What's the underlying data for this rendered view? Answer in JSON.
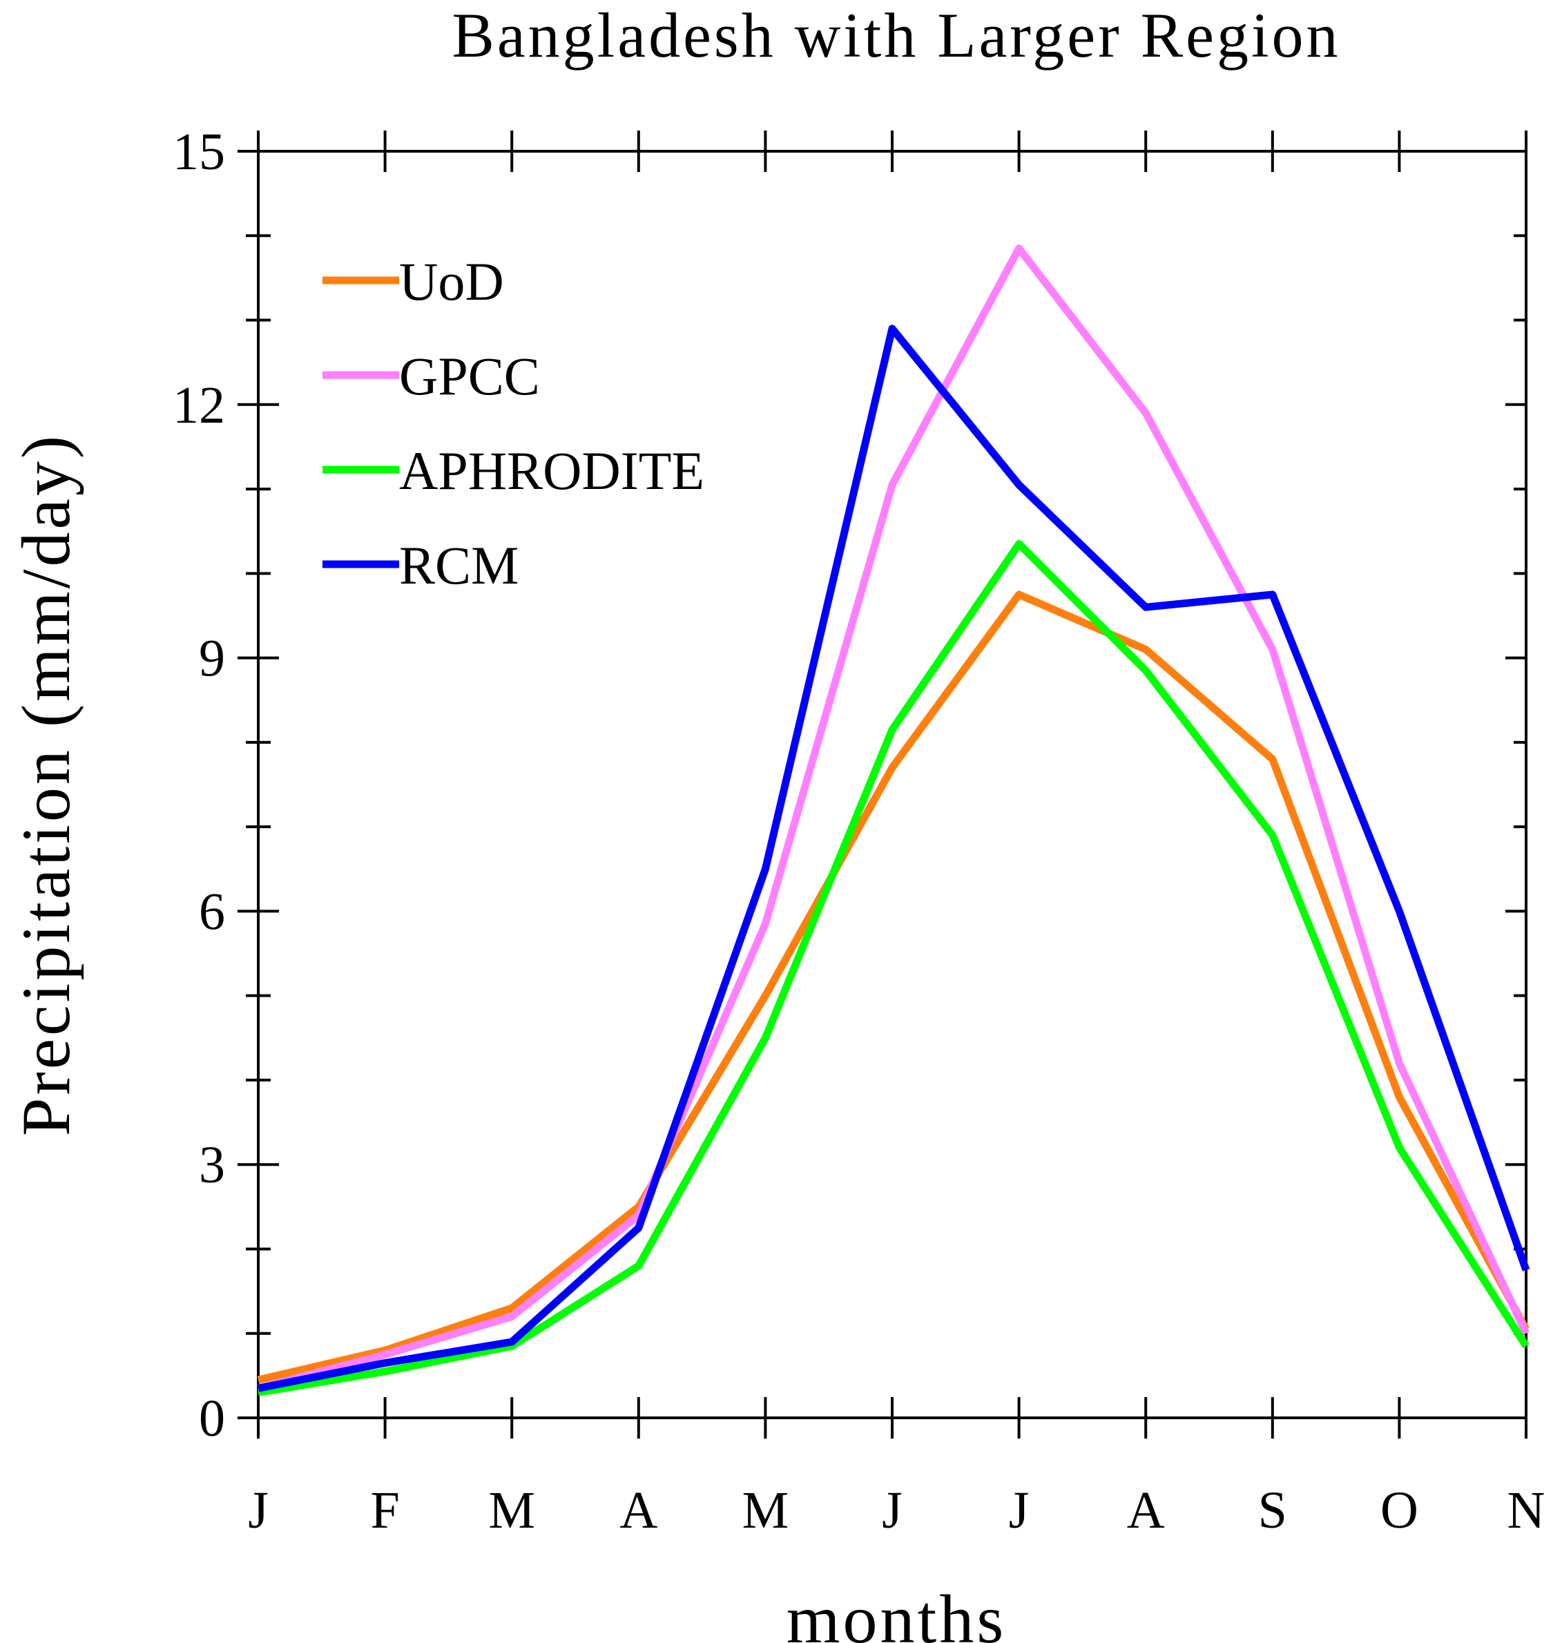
{
  "chart_data": {
    "type": "line",
    "title": "Bangladesh with Larger Region",
    "xlabel": "months",
    "ylabel": "Precipitation (mm/day)",
    "categories": [
      "J",
      "F",
      "M",
      "A",
      "M",
      "J",
      "J",
      "A",
      "S",
      "O",
      "N"
    ],
    "ylim": [
      0,
      15
    ],
    "yticks": [
      0,
      3,
      6,
      9,
      12,
      15
    ],
    "ytick_labels": [
      "0",
      "3",
      "6",
      "9",
      "12",
      "15"
    ],
    "grid": false,
    "legend_position": "top-left",
    "series": [
      {
        "name": "UoD",
        "color": "#ff7f0e",
        "values": [
          0.45,
          0.8,
          1.3,
          2.5,
          5.0,
          7.7,
          9.75,
          9.1,
          7.8,
          3.8,
          1.05
        ]
      },
      {
        "name": "GPCC",
        "color": "#ff80ff",
        "values": [
          0.35,
          0.75,
          1.2,
          2.4,
          5.85,
          11.05,
          13.85,
          11.9,
          9.1,
          4.2,
          1.0
        ]
      },
      {
        "name": "APHRODITE",
        "color": "#00ff00",
        "values": [
          0.3,
          0.55,
          0.85,
          1.8,
          4.5,
          8.15,
          10.35,
          8.85,
          6.9,
          3.2,
          0.85
        ]
      },
      {
        "name": "RCM",
        "color": "#0000ff",
        "values": [
          0.35,
          0.65,
          0.9,
          2.25,
          6.5,
          12.9,
          11.05,
          9.6,
          9.75,
          6.0,
          1.75
        ]
      }
    ]
  }
}
